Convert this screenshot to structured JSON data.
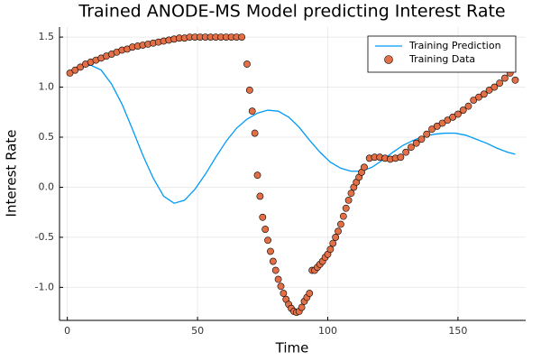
{
  "chart_data": {
    "type": "line_scatter",
    "title": "Trained ANODE-MS Model predicting Interest Rate",
    "x_label": "Time",
    "y_label": "Interest Rate",
    "xlim": [
      -3,
      176
    ],
    "ylim": [
      -1.33,
      1.6
    ],
    "xticks": [
      0,
      50,
      100,
      150
    ],
    "yticks": [
      {
        "value": -1,
        "label": "-1.0"
      },
      {
        "value": -0.5,
        "label": "-0.5"
      },
      {
        "value": 0,
        "label": "0.0"
      },
      {
        "value": 0.5,
        "label": "0.5"
      },
      {
        "value": 1,
        "label": "1.0"
      },
      {
        "value": 1.5,
        "label": "1.5"
      }
    ],
    "grid": true,
    "legend_position": "top-right",
    "series": [
      {
        "name": "Training Prediction",
        "kind": "line",
        "color": "#009af9",
        "x": [
          1,
          5,
          9,
          13,
          17,
          21,
          25,
          29,
          33,
          37,
          41,
          45,
          49,
          53,
          57,
          61,
          65,
          69,
          73,
          77,
          81,
          85,
          89,
          93,
          97,
          101,
          105,
          109,
          113,
          117,
          121,
          125,
          129,
          133,
          137,
          141,
          145,
          149,
          153,
          157,
          161,
          165,
          169,
          172
        ],
        "values": [
          1.14,
          1.2,
          1.22,
          1.17,
          1.03,
          0.83,
          0.58,
          0.32,
          0.09,
          -0.09,
          -0.16,
          -0.13,
          -0.02,
          0.13,
          0.3,
          0.46,
          0.59,
          0.68,
          0.74,
          0.77,
          0.76,
          0.7,
          0.6,
          0.47,
          0.35,
          0.25,
          0.19,
          0.16,
          0.16,
          0.2,
          0.27,
          0.35,
          0.42,
          0.47,
          0.51,
          0.53,
          0.54,
          0.54,
          0.52,
          0.48,
          0.44,
          0.39,
          0.35,
          0.33
        ]
      },
      {
        "name": "Training Data",
        "kind": "scatter",
        "color": "#e26f46",
        "x": [
          1,
          3,
          5,
          7,
          9,
          11,
          13,
          15,
          17,
          19,
          21,
          23,
          25,
          27,
          29,
          31,
          33,
          35,
          37,
          39,
          41,
          43,
          45,
          47,
          49,
          51,
          53,
          55,
          57,
          59,
          61,
          63,
          65,
          67,
          69,
          70,
          71,
          72,
          73,
          74,
          75,
          76,
          77,
          78,
          79,
          80,
          81,
          82,
          83,
          84,
          85,
          86,
          87,
          88,
          89,
          90,
          91,
          92,
          93,
          94,
          95,
          96,
          97,
          98,
          99,
          100,
          101,
          102,
          103,
          104,
          105,
          106,
          107,
          108,
          109,
          110,
          111,
          112,
          113,
          114,
          116,
          118,
          120,
          122,
          124,
          126,
          128,
          130,
          132,
          134,
          136,
          138,
          140,
          142,
          144,
          146,
          148,
          150,
          152,
          154,
          156,
          158,
          160,
          162,
          164,
          166,
          168,
          170,
          172
        ],
        "values": [
          1.14,
          1.17,
          1.2,
          1.23,
          1.25,
          1.27,
          1.29,
          1.31,
          1.33,
          1.35,
          1.37,
          1.38,
          1.4,
          1.41,
          1.42,
          1.43,
          1.44,
          1.45,
          1.46,
          1.47,
          1.48,
          1.49,
          1.49,
          1.5,
          1.5,
          1.5,
          1.5,
          1.5,
          1.5,
          1.5,
          1.5,
          1.5,
          1.5,
          1.5,
          1.23,
          0.97,
          0.76,
          0.54,
          0.12,
          -0.09,
          -0.3,
          -0.42,
          -0.53,
          -0.64,
          -0.74,
          -0.83,
          -0.92,
          -0.99,
          -1.06,
          -1.12,
          -1.17,
          -1.21,
          -1.24,
          -1.25,
          -1.24,
          -1.2,
          -1.14,
          -1.1,
          -1.06,
          -0.83,
          -0.83,
          -0.8,
          -0.77,
          -0.74,
          -0.7,
          -0.67,
          -0.62,
          -0.56,
          -0.5,
          -0.44,
          -0.37,
          -0.29,
          -0.21,
          -0.13,
          -0.06,
          0,
          0.05,
          0.1,
          0.15,
          0.2,
          0.29,
          0.3,
          0.3,
          0.29,
          0.28,
          0.29,
          0.3,
          0.35,
          0.4,
          0.44,
          0.48,
          0.53,
          0.58,
          0.61,
          0.64,
          0.67,
          0.7,
          0.73,
          0.77,
          0.81,
          0.87,
          0.9,
          0.93,
          0.97,
          1,
          1.04,
          1.09,
          1.14,
          1.07
        ]
      }
    ]
  }
}
